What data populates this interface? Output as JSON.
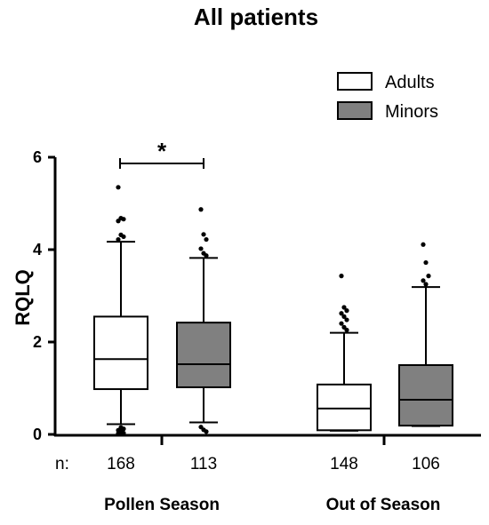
{
  "chart_data": {
    "type": "box",
    "title": "All patients",
    "ylabel": "RQLQ",
    "ylim": [
      0,
      6
    ],
    "yticks": [
      "0",
      "2",
      "4",
      "6"
    ],
    "legend": {
      "placement": "top-right",
      "entries": [
        {
          "name": "Adults",
          "color": "#ffffff"
        },
        {
          "name": "Minors",
          "color": "#808080"
        }
      ]
    },
    "n_prefix": "n:",
    "groups": [
      {
        "label": "Pollen Season",
        "significance": "*"
      },
      {
        "label": "Out of Season"
      }
    ],
    "boxes": [
      {
        "group": "Pollen Season",
        "series": "Adults",
        "n": "168",
        "whisker_low": 0.22,
        "q1": 0.98,
        "median": 1.63,
        "q3": 2.55,
        "whisker_high": 4.17,
        "outliers": [
          5.35,
          4.68,
          4.66,
          4.62,
          4.32,
          4.28,
          4.22,
          0.15,
          0.12,
          0.09,
          0.06,
          0.03,
          0.02,
          0.01
        ]
      },
      {
        "group": "Pollen Season",
        "series": "Minors",
        "n": "113",
        "whisker_low": 0.26,
        "q1": 1.02,
        "median": 1.52,
        "q3": 2.42,
        "whisker_high": 3.82,
        "outliers": [
          4.87,
          4.33,
          4.22,
          4.02,
          3.92,
          3.87,
          0.16,
          0.1,
          0.06
        ]
      },
      {
        "group": "Out of Season",
        "series": "Adults",
        "n": "148",
        "whisker_low": 0.08,
        "q1": 0.09,
        "median": 0.56,
        "q3": 1.08,
        "whisker_high": 2.2,
        "outliers": [
          3.43,
          2.75,
          2.68,
          2.62,
          2.55,
          2.48,
          2.4,
          2.32,
          2.26
        ]
      },
      {
        "group": "Out of Season",
        "series": "Minors",
        "n": "106",
        "whisker_low": 0.18,
        "q1": 0.19,
        "median": 0.75,
        "q3": 1.5,
        "whisker_high": 3.19,
        "outliers": [
          4.11,
          3.72,
          3.43,
          3.33,
          3.25
        ]
      }
    ]
  }
}
